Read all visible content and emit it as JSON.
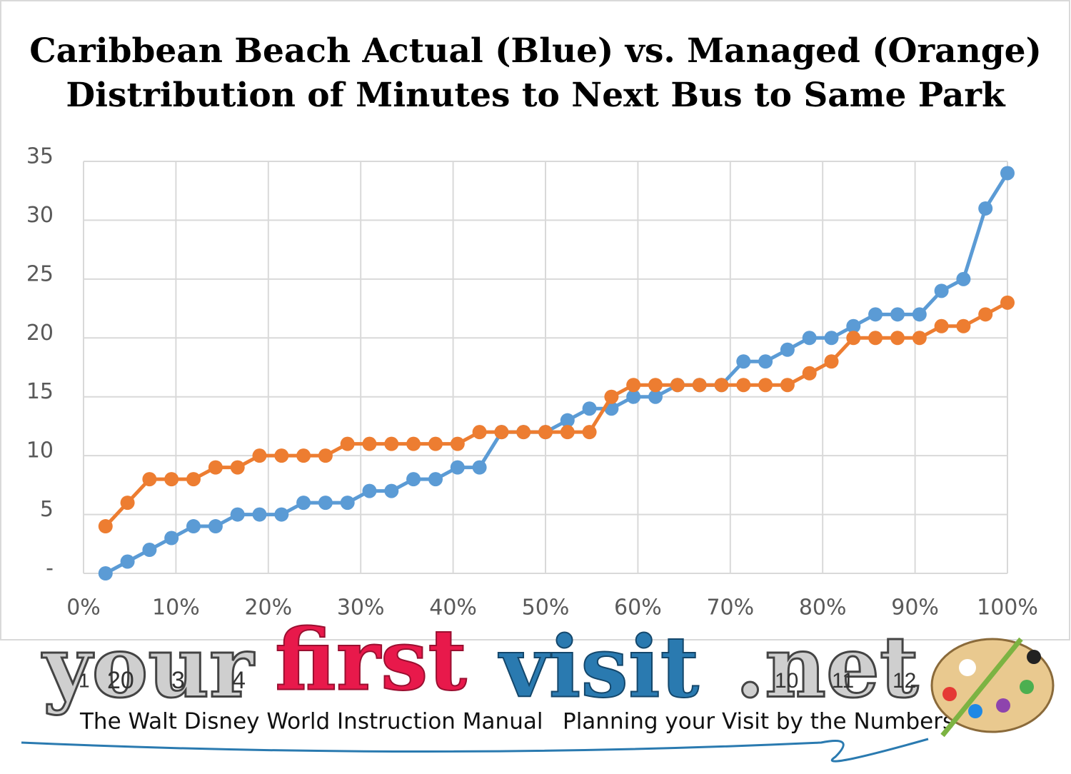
{
  "chart_data": {
    "type": "line",
    "title": [
      "Caribbean Beach Actual (Blue) vs. Managed (Orange)",
      "Distribution of Minutes to Next Bus to Same Park"
    ],
    "x": [
      2.38,
      4.76,
      7.14,
      9.52,
      11.9,
      14.29,
      16.67,
      19.05,
      21.43,
      23.81,
      26.19,
      28.57,
      30.95,
      33.33,
      35.71,
      38.1,
      40.48,
      42.86,
      45.24,
      47.62,
      50,
      52.38,
      54.76,
      57.14,
      59.52,
      61.9,
      64.29,
      66.67,
      69.05,
      71.43,
      73.81,
      76.19,
      78.57,
      80.95,
      83.33,
      85.71,
      88.1,
      90.48,
      92.86,
      95.24,
      97.62,
      100
    ],
    "series": [
      {
        "color": "#5b9bd5",
        "values": [
          0,
          1,
          2,
          3,
          4,
          4,
          5,
          5,
          5,
          6,
          6,
          6,
          7,
          7,
          8,
          8,
          9,
          9,
          12,
          12,
          12,
          13,
          14,
          14,
          15,
          15,
          16,
          16,
          16,
          18,
          18,
          19,
          20,
          20,
          21,
          22,
          22,
          22,
          24,
          25,
          31,
          34
        ]
      },
      {
        "color": "#ed7d31",
        "values": [
          4,
          6,
          8,
          8,
          8,
          9,
          9,
          10,
          10,
          10,
          10,
          11,
          11,
          11,
          11,
          11,
          11,
          12,
          12,
          12,
          12,
          12,
          12,
          15,
          16,
          16,
          16,
          16,
          16,
          16,
          16,
          16,
          17,
          18,
          20,
          20,
          20,
          20,
          21,
          21,
          22,
          23
        ]
      }
    ],
    "xlim": [
      0,
      100
    ],
    "xticks": [
      {
        "value": 0,
        "label": "0%"
      },
      {
        "value": 10,
        "label": "10%"
      },
      {
        "value": 20,
        "label": "20%"
      },
      {
        "value": 30,
        "label": "30%"
      },
      {
        "value": 40,
        "label": "40%"
      },
      {
        "value": 50,
        "label": "50%"
      },
      {
        "value": 60,
        "label": "60%"
      },
      {
        "value": 70,
        "label": "70%"
      },
      {
        "value": 80,
        "label": "80%"
      },
      {
        "value": 90,
        "label": "90%"
      },
      {
        "value": 100,
        "label": "100%"
      }
    ],
    "ylim": [
      0,
      35
    ],
    "yticks": [
      {
        "value": 0,
        "label": "-"
      },
      5,
      10,
      15,
      20,
      25,
      30,
      35
    ],
    "grid": true
  },
  "banner": {
    "logo": [
      "your",
      "first",
      "visit",
      ".net"
    ],
    "numbers": [
      "1",
      "20",
      "3",
      "4",
      "10",
      "11",
      "12"
    ],
    "tagline": [
      "The Walt Disney World Instruction Manual",
      "Planning your Visit by the Numbers"
    ]
  }
}
